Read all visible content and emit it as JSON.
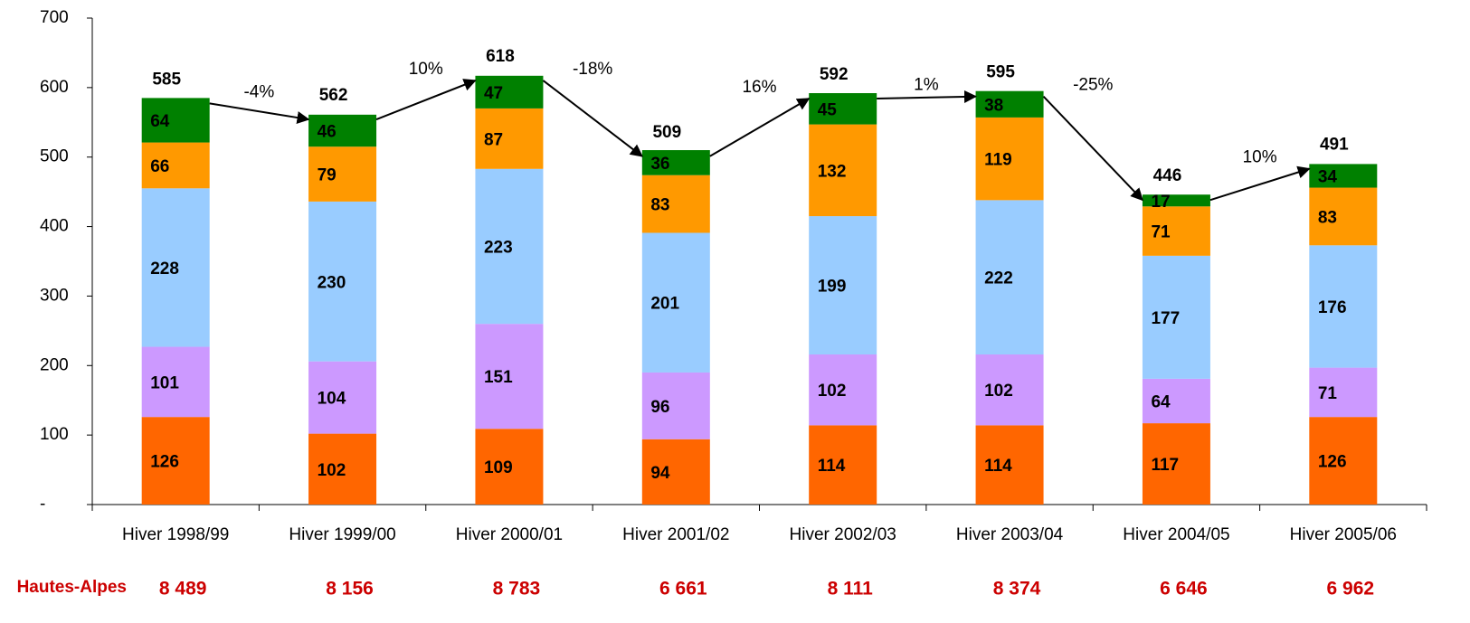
{
  "chart_data": {
    "type": "bar",
    "stacked": true,
    "categories": [
      "Hiver 1998/99",
      "Hiver 1999/00",
      "Hiver 2000/01",
      "Hiver 2001/02",
      "Hiver 2002/03",
      "Hiver 2003/04",
      "Hiver 2004/05",
      "Hiver 2005/06"
    ],
    "series": [
      {
        "color": "#FF6600",
        "values": [
          126,
          102,
          109,
          94,
          114,
          114,
          117,
          126
        ]
      },
      {
        "color": "#CC99FF",
        "values": [
          101,
          104,
          151,
          96,
          102,
          102,
          64,
          71
        ]
      },
      {
        "color": "#99CCFF",
        "values": [
          228,
          230,
          223,
          201,
          199,
          222,
          177,
          176
        ]
      },
      {
        "color": "#FF9900",
        "values": [
          66,
          79,
          87,
          83,
          132,
          119,
          71,
          83
        ]
      },
      {
        "color": "#008000",
        "values": [
          64,
          46,
          47,
          36,
          45,
          38,
          17,
          34
        ]
      }
    ],
    "totals": {
      "values": [
        585,
        562,
        618,
        509,
        592,
        595,
        446,
        491
      ]
    },
    "changes": {
      "values": [
        -4,
        10,
        -18,
        16,
        1,
        -25,
        10
      ],
      "value_labels": [
        "-4%",
        "10%",
        "-18%",
        "16%",
        "1%",
        "-25%",
        "10%"
      ]
    },
    "ylim": [
      0,
      700
    ],
    "yticks": [
      {
        "value": 0,
        "label": "-"
      },
      100,
      200,
      300,
      400,
      500,
      600,
      700
    ],
    "footer": {
      "label": "Hautes-Alpes",
      "color": "#CC0000",
      "values": [
        8489,
        8156,
        8783,
        6661,
        8111,
        8374,
        6646,
        6962
      ],
      "value_labels": [
        "8 489",
        "8 156",
        "8 783",
        "6 661",
        "8 111",
        "8 374",
        "6 646",
        "6 962"
      ]
    }
  }
}
